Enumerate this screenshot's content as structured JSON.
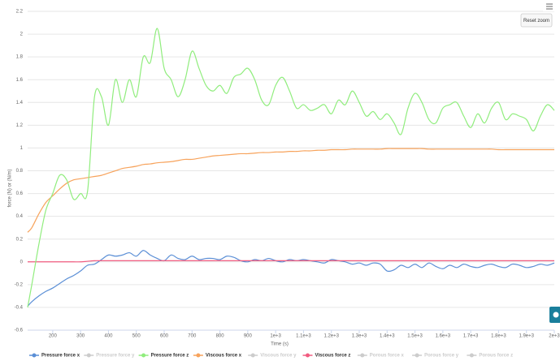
{
  "chart_data": {
    "type": "line",
    "x_label": "Time (s)",
    "y_label": "force (N) or (N/m)",
    "button": "Reset zoom",
    "x": [
      110,
      125,
      150,
      175,
      200,
      225,
      250,
      275,
      300,
      325,
      350,
      375,
      400,
      425,
      450,
      475,
      500,
      525,
      550,
      575,
      600,
      625,
      650,
      675,
      700,
      725,
      750,
      775,
      800,
      825,
      850,
      875,
      900,
      925,
      950,
      975,
      1000,
      1025,
      1050,
      1075,
      1100,
      1125,
      1150,
      1175,
      1200,
      1225,
      1250,
      1275,
      1300,
      1325,
      1350,
      1375,
      1400,
      1425,
      1450,
      1475,
      1500,
      1525,
      1550,
      1575,
      1600,
      1625,
      1650,
      1675,
      1700,
      1725,
      1750,
      1775,
      1800,
      1825,
      1850,
      1875,
      1900,
      1925,
      1950,
      1975,
      2000
    ],
    "xlim": [
      110,
      2000
    ],
    "xticks": [
      200,
      300,
      400,
      500,
      600,
      700,
      800,
      900,
      {
        "value": 1000,
        "label": "1e+3"
      },
      {
        "value": 1100,
        "label": "1.1e+3"
      },
      {
        "value": 1200,
        "label": "1.2e+3"
      },
      {
        "value": 1300,
        "label": "1.3e+3"
      },
      {
        "value": 1400,
        "label": "1.4e+3"
      },
      {
        "value": 1500,
        "label": "1.5e+3"
      },
      {
        "value": 1600,
        "label": "1.6e+3"
      },
      {
        "value": 1700,
        "label": "1.7e+3"
      },
      {
        "value": 1800,
        "label": "1.8e+3"
      },
      {
        "value": 1900,
        "label": "1.9e+3"
      },
      {
        "value": 2000,
        "label": "2e+3"
      }
    ],
    "ylim": [
      -0.6,
      2.2
    ],
    "yticks": [
      -0.6,
      -0.4,
      -0.2,
      0,
      0.2,
      0.4,
      0.6,
      0.8,
      1,
      1.2,
      1.4,
      1.6,
      1.8,
      2,
      2.2
    ],
    "grid": true,
    "series": [
      {
        "name": "Pressure force x",
        "color": "#5b8fd6",
        "visible": true,
        "values": [
          -0.39,
          -0.35,
          -0.3,
          -0.26,
          -0.23,
          -0.19,
          -0.15,
          -0.12,
          -0.08,
          -0.03,
          -0.02,
          0.02,
          0.06,
          0.05,
          0.06,
          0.08,
          0.05,
          0.1,
          0.06,
          0.03,
          0.01,
          0.06,
          0.03,
          0.02,
          0.05,
          0.02,
          0.03,
          0.03,
          0.02,
          0.05,
          0.04,
          0.01,
          0,
          0.02,
          0.01,
          0.03,
          0.01,
          0,
          0.02,
          0.01,
          0.02,
          0.01,
          0,
          -0.01,
          0.02,
          0.01,
          0,
          -0.02,
          -0.01,
          -0.03,
          -0.01,
          -0.02,
          -0.08,
          -0.07,
          -0.03,
          -0.05,
          -0.02,
          -0.05,
          -0.01,
          -0.04,
          -0.06,
          -0.03,
          -0.05,
          -0.02,
          -0.04,
          -0.05,
          -0.03,
          -0.02,
          -0.04,
          -0.05,
          -0.02,
          -0.03,
          -0.05,
          -0.04,
          -0.02,
          -0.03,
          -0.01
        ]
      },
      {
        "name": "Pressure force y",
        "visible": false
      },
      {
        "name": "Pressure force z",
        "color": "#90ed7d",
        "visible": true,
        "values": [
          -0.4,
          -0.2,
          0.15,
          0.45,
          0.6,
          0.76,
          0.72,
          0.55,
          0.6,
          0.62,
          1.45,
          1.45,
          1.2,
          1.6,
          1.4,
          1.6,
          1.45,
          1.8,
          1.75,
          2.05,
          1.7,
          1.6,
          1.45,
          1.6,
          1.85,
          1.7,
          1.55,
          1.5,
          1.55,
          1.48,
          1.62,
          1.65,
          1.7,
          1.6,
          1.42,
          1.38,
          1.55,
          1.62,
          1.5,
          1.35,
          1.38,
          1.33,
          1.35,
          1.38,
          1.3,
          1.42,
          1.38,
          1.5,
          1.4,
          1.28,
          1.32,
          1.25,
          1.3,
          1.22,
          1.12,
          1.35,
          1.48,
          1.4,
          1.25,
          1.22,
          1.35,
          1.38,
          1.4,
          1.28,
          1.18,
          1.3,
          1.22,
          1.35,
          1.4,
          1.25,
          1.3,
          1.28,
          1.25,
          1.15,
          1.28,
          1.38,
          1.33
        ]
      },
      {
        "name": "Viscous force x",
        "color": "#f7a35c",
        "visible": true,
        "values": [
          0.26,
          0.3,
          0.42,
          0.52,
          0.58,
          0.64,
          0.69,
          0.72,
          0.73,
          0.74,
          0.75,
          0.76,
          0.78,
          0.8,
          0.82,
          0.83,
          0.84,
          0.855,
          0.86,
          0.87,
          0.875,
          0.88,
          0.89,
          0.9,
          0.9,
          0.91,
          0.92,
          0.93,
          0.935,
          0.94,
          0.945,
          0.95,
          0.95,
          0.955,
          0.96,
          0.96,
          0.965,
          0.965,
          0.97,
          0.97,
          0.975,
          0.975,
          0.98,
          0.98,
          0.985,
          0.985,
          0.985,
          0.99,
          0.99,
          0.99,
          0.99,
          0.99,
          0.995,
          0.995,
          0.995,
          0.995,
          0.995,
          0.995,
          0.99,
          0.99,
          0.99,
          0.99,
          0.99,
          0.99,
          0.99,
          0.99,
          0.99,
          0.99,
          0.985,
          0.985,
          0.985,
          0.985,
          0.985,
          0.985,
          0.985,
          0.985,
          0.985
        ]
      },
      {
        "name": "Viscous force y",
        "visible": false
      },
      {
        "name": "Viscous force z",
        "color": "#f15c80",
        "visible": true,
        "values": [
          0,
          0,
          0,
          0,
          0,
          0,
          0,
          0,
          0,
          0.005,
          0.01,
          0.01,
          0.01,
          0.01,
          0.01,
          0.01,
          0.01,
          0.01,
          0.01,
          0.01,
          0.01,
          0.01,
          0.01,
          0.01,
          0.01,
          0.01,
          0.01,
          0.01,
          0.01,
          0.01,
          0.01,
          0.01,
          0.01,
          0.01,
          0.01,
          0.01,
          0.01,
          0.01,
          0.01,
          0.01,
          0.01,
          0.01,
          0.01,
          0.01,
          0.01,
          0.01,
          0.01,
          0.01,
          0.01,
          0.01,
          0.01,
          0.01,
          0.01,
          0.01,
          0.01,
          0.01,
          0.01,
          0.01,
          0.01,
          0.01,
          0.01,
          0.01,
          0.01,
          0.01,
          0.01,
          0.01,
          0.01,
          0.01,
          0.01,
          0.01,
          0.01,
          0.01,
          0.01,
          0.01,
          0.01,
          0.01,
          0.01
        ]
      },
      {
        "name": "Porous force x",
        "visible": false
      },
      {
        "name": "Porous force y",
        "visible": false
      },
      {
        "name": "Porous force z",
        "visible": false
      }
    ]
  }
}
